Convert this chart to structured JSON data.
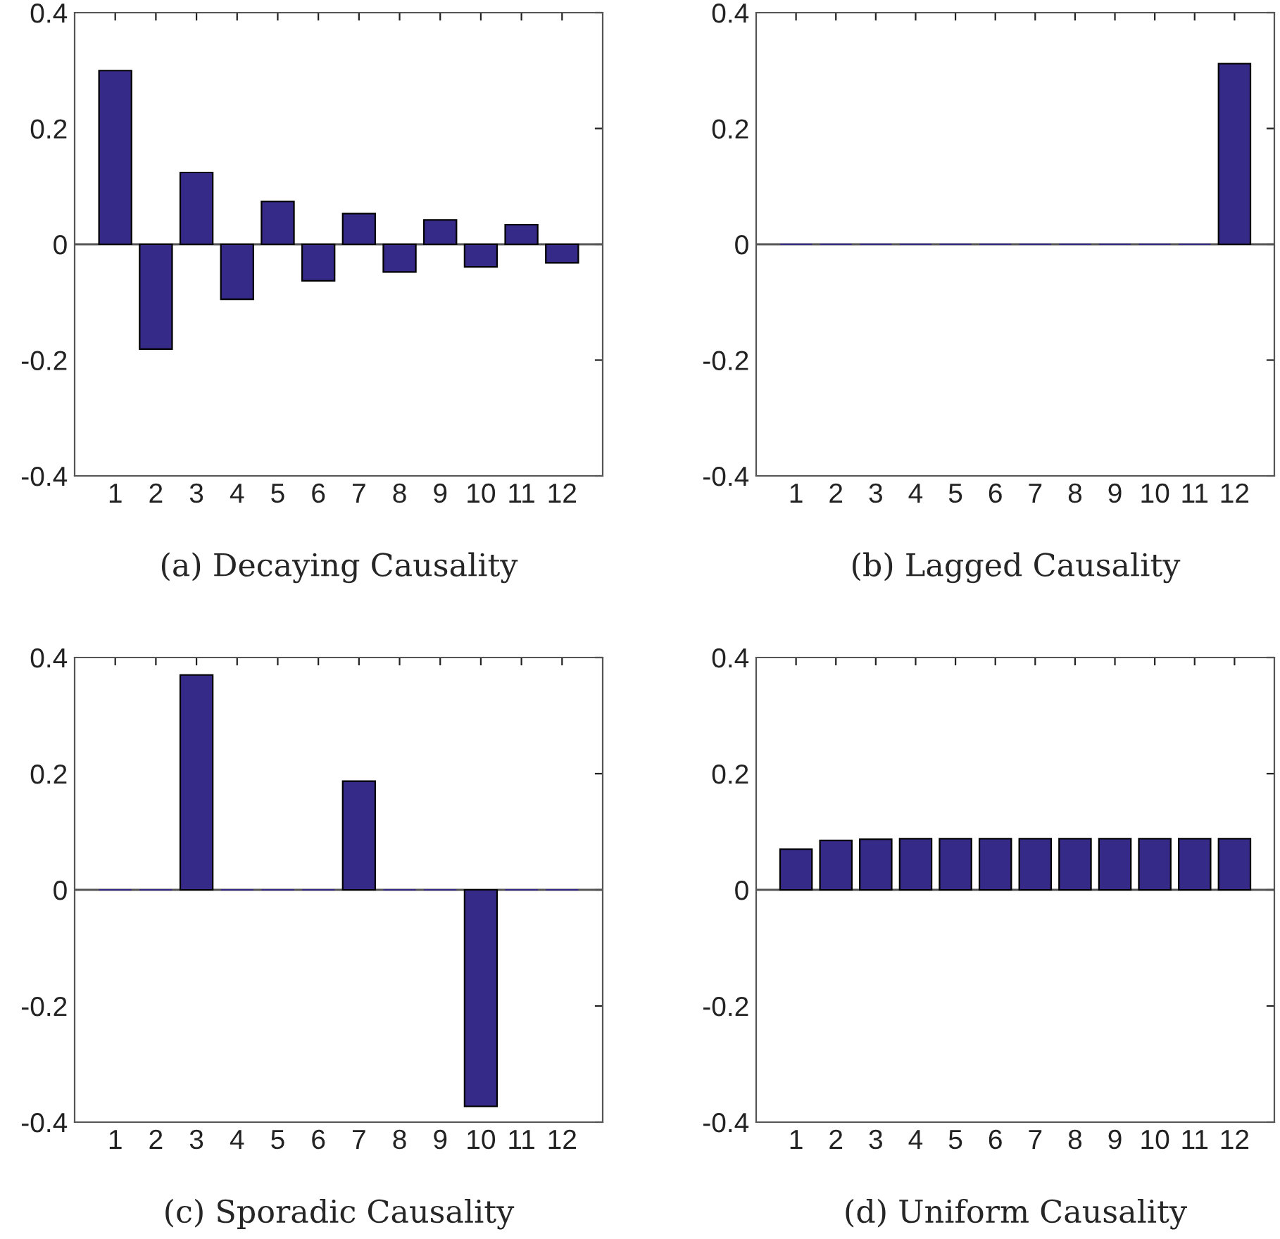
{
  "chart_data": [
    {
      "type": "bar",
      "title": "(a) Decaying Causality",
      "categories": [
        "1",
        "2",
        "3",
        "4",
        "5",
        "6",
        "7",
        "8",
        "9",
        "10",
        "11",
        "12"
      ],
      "color": "#352a87",
      "values": [
        0.3,
        -0.181,
        0.124,
        -0.095,
        0.074,
        -0.063,
        0.053,
        -0.048,
        0.042,
        -0.039,
        0.034,
        -0.032
      ],
      "ylim": [
        -0.4,
        0.4
      ],
      "yticks": [
        -0.4,
        -0.2,
        0,
        0.2,
        0.4
      ],
      "ref_lines": [
        {
          "axis": "y",
          "value": 0
        }
      ],
      "grid": false
    },
    {
      "type": "bar",
      "title": "(b) Lagged Causality",
      "categories": [
        "1",
        "2",
        "3",
        "4",
        "5",
        "6",
        "7",
        "8",
        "9",
        "10",
        "11",
        "12"
      ],
      "color": "#352a87",
      "values": [
        0,
        0,
        0,
        0,
        0,
        0,
        0,
        0,
        0,
        0,
        0,
        0.312
      ],
      "ylim": [
        -0.4,
        0.4
      ],
      "yticks": [
        -0.4,
        -0.2,
        0,
        0.2,
        0.4
      ],
      "ref_lines": [
        {
          "axis": "y",
          "value": 0
        }
      ],
      "grid": false
    },
    {
      "type": "bar",
      "title": "(c) Sporadic Causality",
      "categories": [
        "1",
        "2",
        "3",
        "4",
        "5",
        "6",
        "7",
        "8",
        "9",
        "10",
        "11",
        "12"
      ],
      "color": "#352a87",
      "values": [
        0,
        0,
        0.37,
        0,
        0,
        0,
        0.187,
        0,
        0,
        -0.373,
        0,
        0
      ],
      "ylim": [
        -0.4,
        0.4
      ],
      "yticks": [
        -0.4,
        -0.2,
        0,
        0.2,
        0.4
      ],
      "ref_lines": [
        {
          "axis": "y",
          "value": 0
        }
      ],
      "grid": false
    },
    {
      "type": "bar",
      "title": "(d) Uniform Causality",
      "categories": [
        "1",
        "2",
        "3",
        "4",
        "5",
        "6",
        "7",
        "8",
        "9",
        "10",
        "11",
        "12"
      ],
      "color": "#352a87",
      "values": [
        0.07,
        0.085,
        0.087,
        0.088,
        0.088,
        0.088,
        0.088,
        0.088,
        0.088,
        0.088,
        0.088,
        0.088
      ],
      "ylim": [
        -0.4,
        0.4
      ],
      "yticks": [
        -0.4,
        -0.2,
        0,
        0.2,
        0.4
      ],
      "ref_lines": [
        {
          "axis": "y",
          "value": 0
        }
      ],
      "grid": false
    }
  ]
}
